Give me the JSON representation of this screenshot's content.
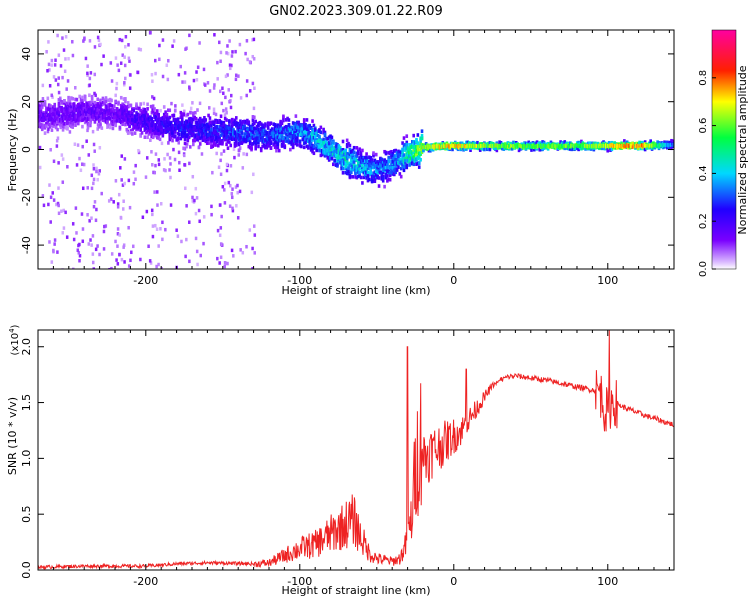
{
  "title": "GN02.2023.309.01.22.R09",
  "chart_data": [
    {
      "type": "heatmap",
      "xlabel": "Height of straight line (km)",
      "ylabel": "Frequency (Hz)",
      "xlim": [
        -270,
        143
      ],
      "ylim": [
        -50,
        50
      ],
      "xticks": [
        "-200",
        "-100",
        "0",
        "100"
      ],
      "xtick_values": [
        -200,
        -100,
        0,
        100
      ],
      "yticks": [
        "-40",
        "-20",
        "0",
        "20",
        "40"
      ],
      "ytick_values": [
        -40,
        -20,
        0,
        20,
        40
      ],
      "colorbar": {
        "label": "Normalized spectral amplitude",
        "ticks": [
          "0.0",
          "0.2",
          "0.4",
          "0.6",
          "0.8"
        ],
        "tick_values": [
          0.0,
          0.2,
          0.4,
          0.6,
          0.8
        ],
        "range": [
          0,
          1
        ],
        "colormap": "rainbow (violet → blue → cyan → green → yellow → red → magenta)"
      },
      "ridge": {
        "x": [
          -265,
          -240,
          -220,
          -200,
          -180,
          -160,
          -140,
          -120,
          -100,
          -90,
          -80,
          -70,
          -60,
          -50,
          -40,
          -30,
          -20,
          0,
          20,
          50,
          80,
          100,
          120,
          143
        ],
        "y": [
          14,
          16,
          15,
          12,
          9,
          8,
          7,
          6,
          7,
          5,
          0,
          -4,
          -7,
          -9,
          -6,
          -2,
          1,
          1.5,
          1.5,
          1.5,
          1.5,
          1.5,
          1.5,
          2
        ],
        "amplitude": [
          0.15,
          0.15,
          0.15,
          0.2,
          0.25,
          0.25,
          0.3,
          0.3,
          0.35,
          0.4,
          0.4,
          0.45,
          0.4,
          0.35,
          0.35,
          0.45,
          0.7,
          0.75,
          0.65,
          0.6,
          0.6,
          0.7,
          0.8,
          0.3
        ]
      },
      "grid": false
    },
    {
      "type": "line",
      "xlabel": "Height of straight line (km)",
      "ylabel": "SNR (10 * v/v)",
      "y_multiplier": "(x10",
      "y_multiplier_exp": "4",
      "y_multiplier_close": ")",
      "xlim": [
        -270,
        143
      ],
      "ylim": [
        0,
        2.15
      ],
      "xticks": [
        "-200",
        "-100",
        "0",
        "100"
      ],
      "xtick_values": [
        -200,
        -100,
        0,
        100
      ],
      "yticks": [
        "0.0",
        "0.5",
        "1.0",
        "1.5",
        "2.0"
      ],
      "ytick_values": [
        0,
        0.5,
        1.0,
        1.5,
        2.0
      ],
      "series": [
        {
          "color": "#ee2222",
          "x": [
            -270,
            -240,
            -200,
            -180,
            -160,
            -130,
            -120,
            -110,
            -100,
            -90,
            -80,
            -70,
            -65,
            -60,
            -55,
            -50,
            -40,
            -35,
            -30,
            -27,
            -25,
            -22,
            -20,
            -15,
            -10,
            -5,
            0,
            5,
            10,
            15,
            20,
            25,
            30,
            35,
            40,
            50,
            60,
            80,
            95,
            98,
            100,
            102,
            105,
            110,
            125,
            143
          ],
          "y": [
            0.01,
            0.02,
            0.02,
            0.04,
            0.05,
            0.04,
            0.05,
            0.1,
            0.15,
            0.18,
            0.25,
            0.32,
            0.35,
            0.22,
            0.12,
            0.08,
            0.06,
            0.08,
            0.2,
            0.4,
            0.7,
            0.9,
            1.0,
            1.05,
            1.1,
            1.15,
            1.2,
            1.25,
            1.35,
            1.45,
            1.55,
            1.65,
            1.7,
            1.73,
            1.74,
            1.72,
            1.7,
            1.64,
            1.6,
            1.45,
            1.4,
            1.5,
            1.5,
            1.46,
            1.38,
            1.3
          ]
        }
      ],
      "grid": false
    }
  ]
}
